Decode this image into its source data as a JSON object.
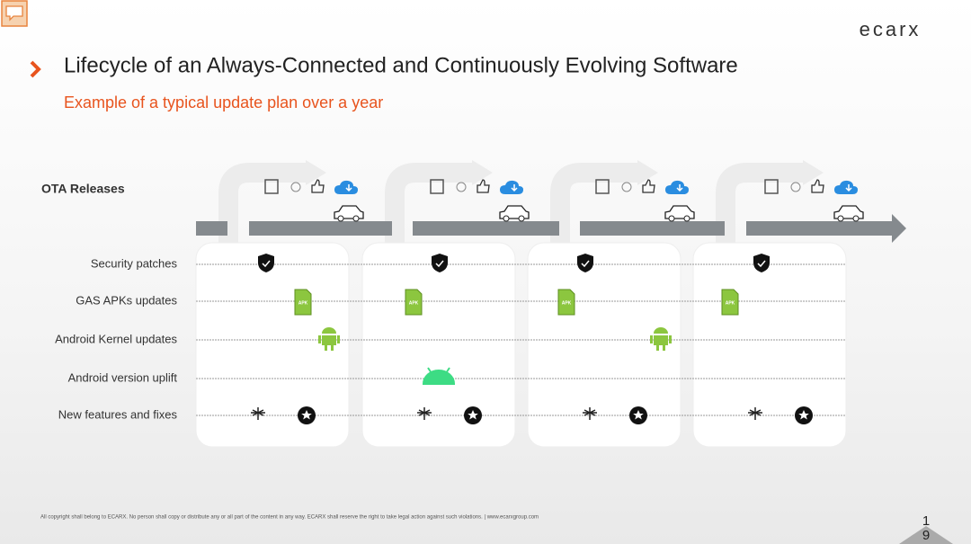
{
  "header": {
    "logo": "ecarx",
    "title": "Lifecycle of an Always-Connected and Continuously Evolving Software",
    "subtitle": "Example of a typical update plan over a year"
  },
  "ota_label": "OTA Releases",
  "rows": [
    "Security patches",
    "GAS APKs updates",
    "Android Kernel updates",
    "Android version uplift",
    "New features and fixes"
  ],
  "apk_label": "APK",
  "footer": "All copyright shall belong to ECARX.  No person shall copy or distribute any or all part of the content in any way.  ECARX shall reserve the right to take legal action against such violations. | www.ecarxgroup.com",
  "page_number": "19"
}
